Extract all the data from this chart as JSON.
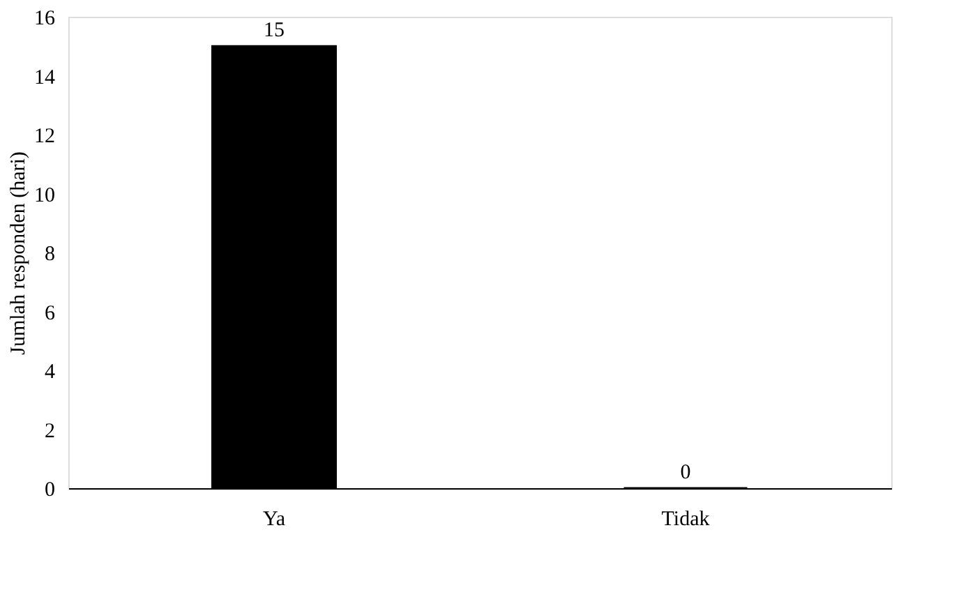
{
  "chart_data": {
    "type": "bar",
    "ylabel": "Jumlah responden (hari)",
    "categories": [
      "Ya",
      "Tidak"
    ],
    "values": [
      15,
      0
    ],
    "color": "#000000",
    "ylim": [
      0,
      16
    ],
    "yticks": [
      0,
      2,
      4,
      6,
      8,
      10,
      12,
      14,
      16
    ],
    "grid": false,
    "data_labels": true
  }
}
